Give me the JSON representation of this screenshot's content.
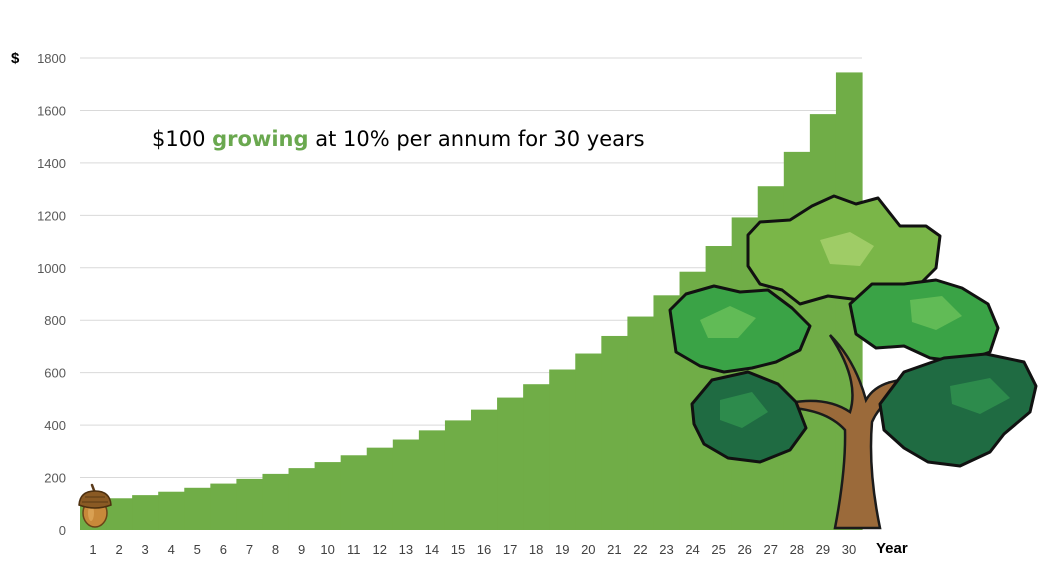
{
  "chart_data": {
    "type": "bar",
    "title_parts": {
      "before": "$100 ",
      "accent": "growing",
      "after": " at 10% per annum for 30 years"
    },
    "xlabel": "Year",
    "ylabel": "$",
    "ylim": [
      0,
      1800
    ],
    "yticks": [
      0,
      200,
      400,
      600,
      800,
      1000,
      1200,
      1400,
      1600,
      1800
    ],
    "grid": true,
    "bar_color": "#70ad47",
    "accent_color": "#6aa84f",
    "categories": [
      "1",
      "2",
      "3",
      "4",
      "5",
      "6",
      "7",
      "8",
      "9",
      "10",
      "11",
      "12",
      "13",
      "14",
      "15",
      "16",
      "17",
      "18",
      "19",
      "20",
      "21",
      "22",
      "23",
      "24",
      "25",
      "26",
      "27",
      "28",
      "29",
      "30"
    ],
    "values": [
      110,
      121,
      133,
      146,
      161,
      177,
      195,
      214,
      236,
      259,
      285,
      314,
      345,
      380,
      418,
      459,
      505,
      556,
      612,
      673,
      740,
      814,
      895,
      985,
      1083,
      1192,
      1311,
      1442,
      1586,
      1745
    ]
  },
  "illustrations": {
    "start_icon": "acorn-icon",
    "end_icon": "oak-tree-icon"
  }
}
